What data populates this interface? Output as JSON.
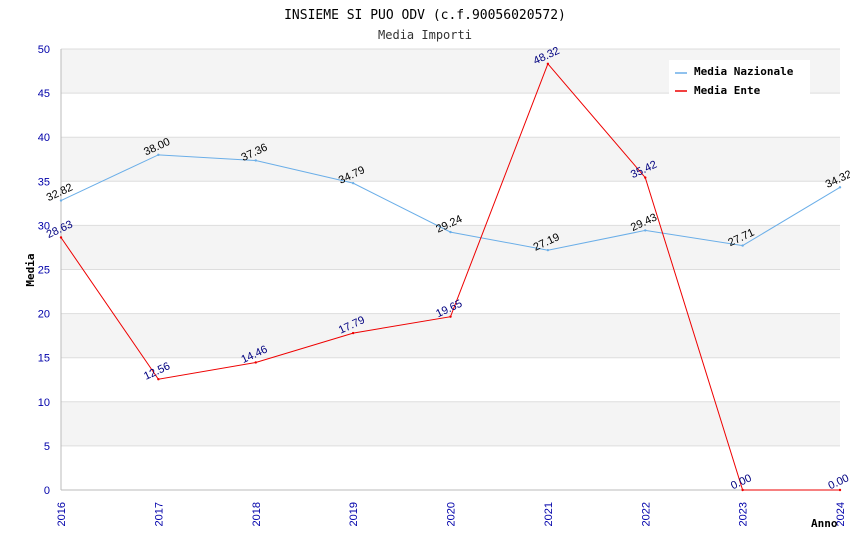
{
  "chart_data": {
    "type": "line",
    "title": "INSIEME SI PUO ODV (c.f.90056020572)",
    "subtitle": "Media Importi",
    "xlabel": "Anno",
    "ylabel": "Media",
    "x": [
      "2016",
      "2017",
      "2018",
      "2019",
      "2020",
      "2021",
      "2022",
      "2023",
      "2024"
    ],
    "yticks": [
      "0",
      "5",
      "10",
      "15",
      "20",
      "25",
      "30",
      "35",
      "40",
      "45",
      "50"
    ],
    "ylim": [
      0,
      50
    ],
    "grid": true,
    "legend_position": "top-right",
    "series": [
      {
        "name": "Media Nazionale",
        "color": "#6aaee8",
        "label_color": "#000000",
        "values": [
          32.82,
          38.0,
          37.36,
          34.79,
          29.24,
          27.19,
          29.43,
          27.71,
          34.32
        ],
        "labels": [
          "32.82",
          "38.00",
          "37.36",
          "34.79",
          "29.24",
          "27.19",
          "29.43",
          "27.71",
          "34.32"
        ]
      },
      {
        "name": "Media Ente",
        "color": "#ee0000",
        "label_color": "#000080",
        "values": [
          28.63,
          12.56,
          14.46,
          17.79,
          19.65,
          48.32,
          35.42,
          0.0,
          0.0
        ],
        "labels": [
          "28.63",
          "12.56",
          "14.46",
          "17.79",
          "19.65",
          "48.32",
          "35.42",
          "0.00",
          "0.00"
        ]
      }
    ]
  }
}
